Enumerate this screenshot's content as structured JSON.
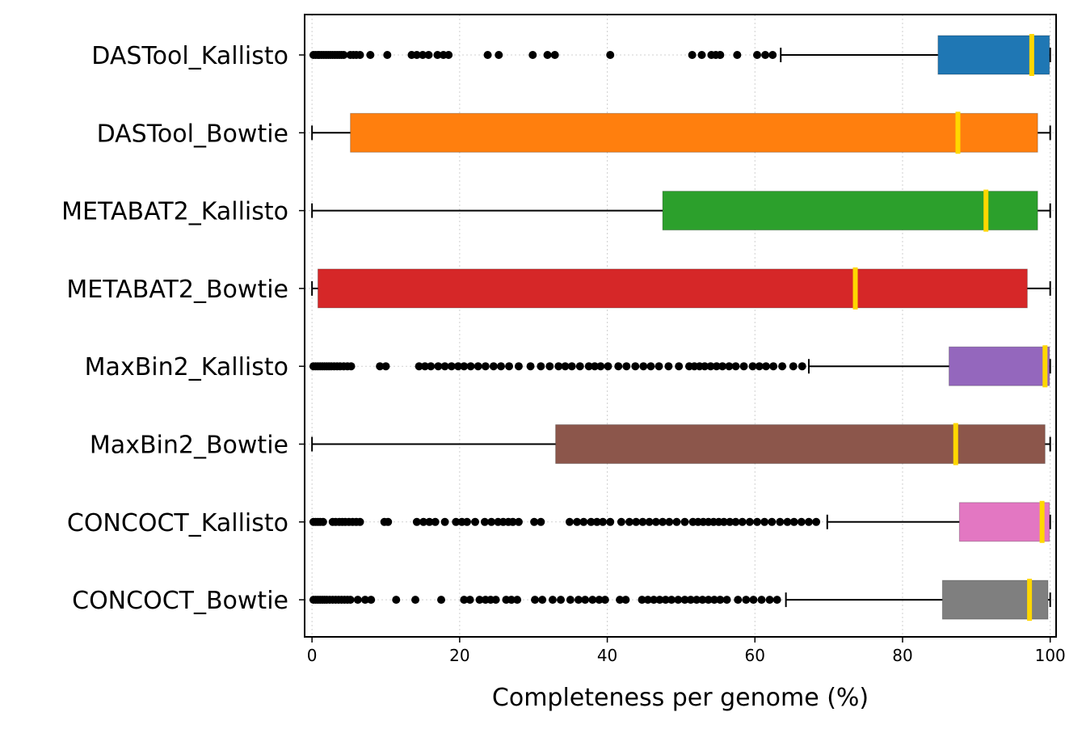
{
  "chart_data": {
    "type": "boxplot",
    "orientation": "horizontal",
    "xlabel": "Completeness per genome (%)",
    "xlim": [
      -1,
      100.8
    ],
    "xticks": [
      0,
      20,
      40,
      60,
      80,
      100
    ],
    "grid": true,
    "categories": [
      "DASTool_Kallisto",
      "DASTool_Bowtie",
      "METABAT2_Kallisto",
      "METABAT2_Bowtie",
      "MaxBin2_Kallisto",
      "MaxBin2_Bowtie",
      "CONCOCT_Kallisto",
      "CONCOCT_Bowtie"
    ],
    "boxes": [
      {
        "label": "DASTool_Kallisto",
        "color": "#1f77b4",
        "whisker_low": 63.5,
        "q1": 84.8,
        "median": 97.5,
        "q3": 99.9,
        "whisker_high": 100,
        "outliers": [
          0.2,
          0.5,
          0.8,
          1.0,
          1.3,
          1.6,
          1.9,
          2.2,
          2.5,
          2.8,
          3.1,
          3.4,
          3.7,
          4.0,
          4.3,
          5.2,
          5.6,
          6.0,
          6.5,
          7.9,
          10.2,
          13.5,
          14.2,
          15.0,
          15.8,
          17.0,
          17.8,
          18.5,
          23.8,
          25.3,
          29.9,
          31.9,
          32.9,
          40.4,
          51.5,
          52.8,
          54.1,
          54.7,
          55.3,
          57.6,
          60.3,
          61.4,
          62.4
        ]
      },
      {
        "label": "DASTool_Bowtie",
        "color": "#ff7f0e",
        "whisker_low": 0,
        "q1": 5.2,
        "median": 87.5,
        "q3": 98.3,
        "whisker_high": 100,
        "outliers": []
      },
      {
        "label": "METABAT2_Kallisto",
        "color": "#2ca02c",
        "whisker_low": 0,
        "q1": 47.5,
        "median": 91.3,
        "q3": 98.3,
        "whisker_high": 100,
        "outliers": []
      },
      {
        "label": "METABAT2_Bowtie",
        "color": "#d62728",
        "whisker_low": 0,
        "q1": 0.8,
        "median": 73.6,
        "q3": 96.9,
        "whisker_high": 100,
        "outliers": []
      },
      {
        "label": "MaxBin2_Kallisto",
        "color": "#9467bd",
        "whisker_low": 67.3,
        "q1": 86.3,
        "median": 99.3,
        "q3": 99.9,
        "whisker_high": 100,
        "outliers": [
          0.2,
          0.5,
          0.8,
          1.1,
          1.4,
          1.7,
          2.0,
          2.3,
          2.6,
          3.0,
          3.4,
          3.8,
          4.3,
          4.8,
          5.3,
          9.2,
          10.0,
          14.5,
          15.3,
          16.1,
          17.1,
          18.0,
          18.9,
          19.8,
          20.6,
          21.5,
          22.5,
          23.5,
          24.6,
          25.6,
          26.7,
          28.0,
          29.6,
          31.0,
          32.2,
          33.4,
          34.3,
          35.2,
          36.3,
          37.5,
          38.3,
          39.1,
          40.1,
          41.5,
          42.6,
          43.8,
          44.9,
          45.9,
          47.0,
          48.3,
          49.7,
          51.1,
          51.8,
          52.5,
          53.2,
          54.0,
          54.8,
          55.6,
          56.5,
          57.4,
          58.5,
          59.7,
          60.6,
          61.5,
          62.5,
          63.7,
          65.2,
          66.4
        ]
      },
      {
        "label": "MaxBin2_Bowtie",
        "color": "#8c564b",
        "whisker_low": 0,
        "q1": 33.0,
        "median": 87.2,
        "q3": 99.3,
        "whisker_high": 100,
        "outliers": []
      },
      {
        "label": "CONCOCT_Kallisto",
        "color": "#e377c2",
        "whisker_low": 69.8,
        "q1": 87.7,
        "median": 98.9,
        "q3": 99.9,
        "whisker_high": 100,
        "outliers": [
          0.2,
          0.5,
          0.8,
          1.1,
          1.5,
          2.8,
          3.2,
          3.7,
          4.1,
          4.5,
          5.0,
          5.5,
          6.0,
          6.5,
          9.8,
          10.3,
          14.2,
          15.1,
          15.9,
          16.7,
          18.0,
          19.5,
          20.3,
          21.0,
          22.1,
          23.4,
          24.3,
          25.2,
          25.9,
          26.6,
          27.2,
          28.0,
          30.1,
          31.0,
          34.9,
          35.9,
          36.8,
          37.8,
          38.6,
          39.4,
          40.4,
          41.9,
          43.0,
          43.9,
          44.8,
          45.7,
          46.6,
          47.5,
          48.4,
          49.4,
          50.5,
          51.6,
          52.3,
          53.0,
          53.7,
          54.4,
          55.1,
          55.8,
          56.6,
          57.4,
          58.3,
          59.3,
          60.3,
          61.3,
          62.3,
          63.4,
          64.4,
          65.3,
          66.3,
          67.3,
          68.3
        ]
      },
      {
        "label": "CONCOCT_Bowtie",
        "color": "#7f7f7f",
        "whisker_low": 64.2,
        "q1": 85.4,
        "median": 97.2,
        "q3": 99.7,
        "whisker_high": 100,
        "outliers": [
          0.2,
          0.5,
          0.8,
          1.1,
          1.4,
          1.7,
          2.0,
          2.4,
          2.8,
          3.2,
          3.6,
          4.0,
          4.4,
          4.8,
          5.2,
          6.2,
          7.2,
          8.0,
          11.4,
          14.0,
          17.5,
          20.6,
          21.4,
          22.7,
          23.5,
          24.2,
          24.9,
          26.3,
          27.0,
          27.8,
          30.2,
          31.2,
          32.6,
          33.7,
          35.0,
          36.1,
          37.0,
          38.0,
          38.9,
          39.7,
          41.7,
          42.5,
          44.7,
          45.5,
          46.3,
          47.1,
          47.9,
          48.7,
          49.6,
          50.5,
          51.3,
          52.1,
          52.9,
          53.7,
          54.5,
          55.3,
          56.2,
          57.7,
          58.8,
          59.8,
          60.9,
          62.0,
          63.0
        ]
      }
    ],
    "median_color": "#ffd700",
    "outlier_color": "#000000"
  }
}
